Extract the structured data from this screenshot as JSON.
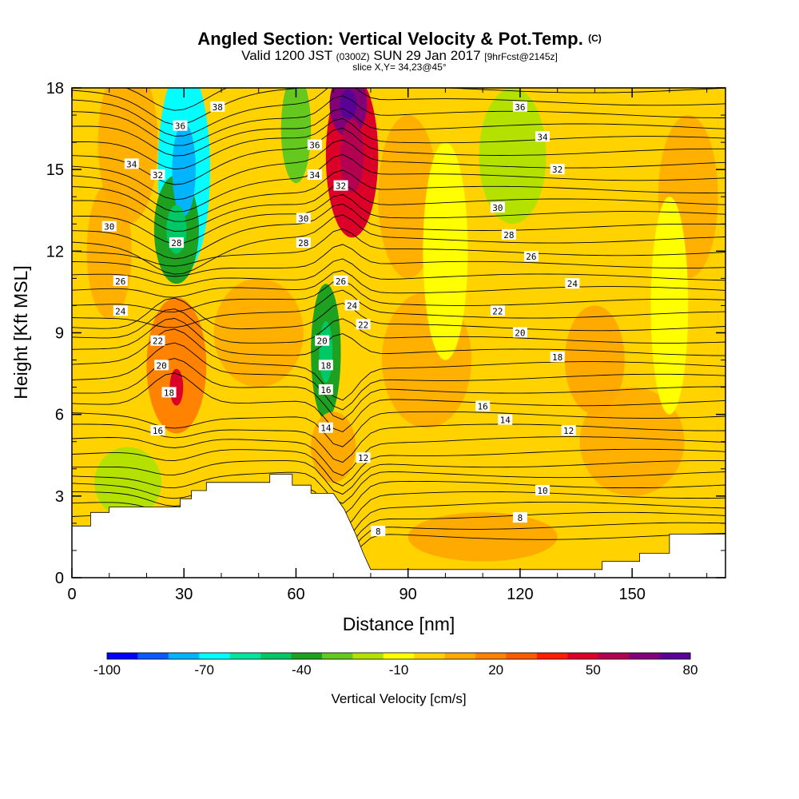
{
  "title": "Angled Section: Vertical Velocity & Pot.Temp.",
  "title_unit": "(C)",
  "subtitle": {
    "valid": "Valid 1200 JST",
    "utc": "(0300Z)",
    "date": "SUN 29 Jan 2017",
    "fcst": "[9hrFcst@2145z]"
  },
  "slice": "slice X,Y= 34,23@45°",
  "chart_data": {
    "type": "heatmap",
    "xlabel": "Distance [nm]",
    "ylabel": "Height [Kft MSL]",
    "xlim": [
      0,
      175
    ],
    "ylim": [
      0,
      18
    ],
    "x_ticks": [
      "0",
      "30",
      "60",
      "90",
      "120",
      "150"
    ],
    "y_ticks": [
      "0",
      "3",
      "6",
      "9",
      "12",
      "15",
      "18"
    ],
    "colorbar": {
      "label": "Vertical Velocity [cm/s]",
      "tick_labels": [
        "-100",
        "-70",
        "-40",
        "-10",
        "20",
        "50",
        "80"
      ],
      "levels": [
        -100,
        -90,
        -80,
        -70,
        -60,
        -50,
        -40,
        -30,
        -20,
        -10,
        0,
        10,
        20,
        30,
        40,
        50,
        60,
        70,
        80
      ],
      "colors": [
        "#0000ff",
        "#0a5aff",
        "#00b4ff",
        "#00ffff",
        "#00e6a0",
        "#00c864",
        "#1ea020",
        "#64c81e",
        "#b4e100",
        "#ffff00",
        "#ffd200",
        "#ffaa00",
        "#ff8200",
        "#ff5a00",
        "#ff1e00",
        "#dc0028",
        "#b40050",
        "#820078",
        "#5a0096"
      ]
    },
    "terrain": [
      [
        0,
        1.9
      ],
      [
        5,
        1.9
      ],
      [
        5,
        2.4
      ],
      [
        10,
        2.4
      ],
      [
        10,
        2.6
      ],
      [
        29,
        2.6
      ],
      [
        29,
        2.9
      ],
      [
        32,
        2.9
      ],
      [
        32,
        3.2
      ],
      [
        36,
        3.2
      ],
      [
        36,
        3.5
      ],
      [
        53,
        3.5
      ],
      [
        53,
        3.8
      ],
      [
        59,
        3.8
      ],
      [
        59,
        3.4
      ],
      [
        64,
        3.4
      ],
      [
        64,
        3.1
      ],
      [
        70,
        3.1
      ],
      [
        73,
        2.5
      ],
      [
        76,
        1.6
      ],
      [
        78,
        0.9
      ],
      [
        80,
        0.3
      ],
      [
        142,
        0.3
      ],
      [
        142,
        0.6
      ],
      [
        152,
        0.6
      ],
      [
        152,
        0.9
      ],
      [
        160,
        0.9
      ],
      [
        160,
        1.6
      ],
      [
        175,
        1.6
      ]
    ],
    "wind_features": [
      {
        "x": 30,
        "y": 15,
        "rx": 7,
        "ry": 3.8,
        "w": -70
      },
      {
        "x": 28,
        "y": 12.8,
        "rx": 6,
        "ry": 2,
        "w": -40
      },
      {
        "x": 60,
        "y": 16.5,
        "rx": 4,
        "ry": 2,
        "w": -30
      },
      {
        "x": 68,
        "y": 8.3,
        "rx": 4,
        "ry": 2.5,
        "w": -40
      },
      {
        "x": 75,
        "y": 15.5,
        "rx": 7,
        "ry": 3,
        "w": 50
      },
      {
        "x": 74,
        "y": 17.4,
        "rx": 5,
        "ry": 1.2,
        "w": 70
      },
      {
        "x": 28,
        "y": 7,
        "rx": 4,
        "ry": 1.5,
        "w": 40
      },
      {
        "x": 28,
        "y": 7.8,
        "rx": 8,
        "ry": 2.5,
        "w": 20
      },
      {
        "x": 15,
        "y": 3.5,
        "rx": 9,
        "ry": 1.3,
        "w": -20
      },
      {
        "x": 118,
        "y": 15.5,
        "rx": 9,
        "ry": 2.5,
        "w": -20
      },
      {
        "x": 70,
        "y": 4.8,
        "rx": 6,
        "ry": 1.3,
        "w": 15
      },
      {
        "x": 110,
        "y": 1.5,
        "rx": 20,
        "ry": 0.9,
        "w": 15
      },
      {
        "x": 160,
        "y": 10,
        "rx": 5,
        "ry": 4,
        "w": -8
      },
      {
        "x": 140,
        "y": 8,
        "rx": 8,
        "ry": 2,
        "w": 15
      },
      {
        "x": 100,
        "y": 12,
        "rx": 6,
        "ry": 4,
        "w": -8
      }
    ],
    "contour_labels": [
      {
        "v": "38",
        "x": 39,
        "y": 17.3
      },
      {
        "v": "36",
        "x": 29,
        "y": 16.6
      },
      {
        "v": "34",
        "x": 16,
        "y": 15.2
      },
      {
        "v": "32",
        "x": 23,
        "y": 14.8
      },
      {
        "v": "30",
        "x": 10,
        "y": 12.9
      },
      {
        "v": "28",
        "x": 28,
        "y": 12.3
      },
      {
        "v": "26",
        "x": 13,
        "y": 10.9
      },
      {
        "v": "24",
        "x": 13,
        "y": 9.8
      },
      {
        "v": "22",
        "x": 23,
        "y": 8.7
      },
      {
        "v": "20",
        "x": 24,
        "y": 7.8
      },
      {
        "v": "18",
        "x": 26,
        "y": 6.8
      },
      {
        "v": "16",
        "x": 23,
        "y": 5.4
      },
      {
        "v": "36",
        "x": 65,
        "y": 15.9
      },
      {
        "v": "34",
        "x": 65,
        "y": 14.8
      },
      {
        "v": "32",
        "x": 72,
        "y": 14.4
      },
      {
        "v": "30",
        "x": 62,
        "y": 13.2
      },
      {
        "v": "28",
        "x": 62,
        "y": 12.3
      },
      {
        "v": "26",
        "x": 72,
        "y": 10.9
      },
      {
        "v": "24",
        "x": 75,
        "y": 10.0
      },
      {
        "v": "22",
        "x": 78,
        "y": 9.3
      },
      {
        "v": "20",
        "x": 67,
        "y": 8.7
      },
      {
        "v": "18",
        "x": 68,
        "y": 7.8
      },
      {
        "v": "16",
        "x": 68,
        "y": 6.9
      },
      {
        "v": "14",
        "x": 68,
        "y": 5.5
      },
      {
        "v": "12",
        "x": 78,
        "y": 4.4
      },
      {
        "v": "8",
        "x": 82,
        "y": 1.7
      },
      {
        "v": "36",
        "x": 120,
        "y": 17.3
      },
      {
        "v": "34",
        "x": 126,
        "y": 16.2
      },
      {
        "v": "32",
        "x": 130,
        "y": 15.0
      },
      {
        "v": "30",
        "x": 114,
        "y": 13.6
      },
      {
        "v": "28",
        "x": 117,
        "y": 12.6
      },
      {
        "v": "26",
        "x": 123,
        "y": 11.8
      },
      {
        "v": "24",
        "x": 134,
        "y": 10.8
      },
      {
        "v": "22",
        "x": 114,
        "y": 9.8
      },
      {
        "v": "20",
        "x": 120,
        "y": 9.0
      },
      {
        "v": "18",
        "x": 130,
        "y": 8.1
      },
      {
        "v": "16",
        "x": 110,
        "y": 6.3
      },
      {
        "v": "14",
        "x": 116,
        "y": 5.8
      },
      {
        "v": "12",
        "x": 133,
        "y": 5.4
      },
      {
        "v": "10",
        "x": 126,
        "y": 3.2
      },
      {
        "v": "8",
        "x": 120,
        "y": 2.2
      }
    ]
  }
}
